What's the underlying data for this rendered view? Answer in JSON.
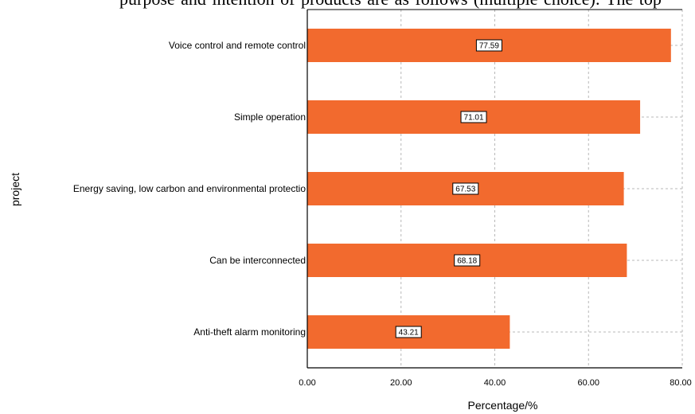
{
  "top_text": "purpose    and intention of          products are as follows (multiple choice):    The top",
  "chart_data": {
    "type": "bar",
    "orientation": "horizontal",
    "categories": [
      "Voice control and remote control",
      "Simple operation",
      "Energy saving, low carbon and environmental protectio",
      "Can be interconnected",
      "Anti-theft alarm monitoring"
    ],
    "values": [
      77.59,
      71.01,
      67.53,
      68.18,
      43.21
    ],
    "data_labels": [
      "77.59",
      "71.01",
      "67.53",
      "68.18",
      "43.21"
    ],
    "xticks": [
      "0.00",
      "20.00",
      "40.00",
      "60.00",
      "80.00"
    ],
    "xlim": [
      0,
      80
    ],
    "xlabel": "Percentage/%",
    "ylabel": "project",
    "grid": true,
    "bar_color": "#f26a2e",
    "grid_color": "#b8b8b8"
  }
}
